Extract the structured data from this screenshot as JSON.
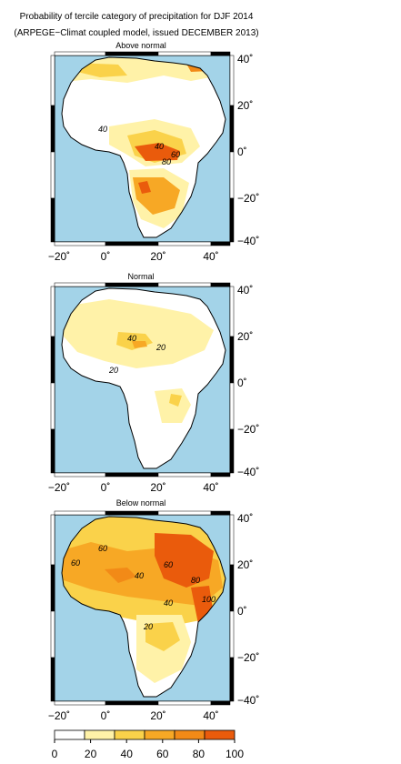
{
  "title_line1": "Probability of tercile category of precipitation for DJF 2014",
  "title_line2": "(ARPEGE−Climat coupled model, issued DECEMBER 2013)",
  "panels": [
    {
      "name": "Above normal",
      "contour_labels": [
        "40",
        "80",
        "40",
        "60"
      ]
    },
    {
      "name": "Normal",
      "contour_labels": [
        "20",
        "40",
        "20"
      ]
    },
    {
      "name": "Below normal",
      "contour_labels": [
        "60",
        "60",
        "40",
        "80",
        "60",
        "100",
        "40",
        "20"
      ]
    }
  ],
  "axes": {
    "x_ticks": [
      "−20˚",
      "0˚",
      "20˚",
      "40˚"
    ],
    "y_ticks": [
      "40˚",
      "20˚",
      "0˚",
      "−20˚",
      "−40˚"
    ]
  },
  "legend": {
    "ticks": [
      "0",
      "20",
      "40",
      "60",
      "80",
      "100"
    ],
    "colors": [
      "#ffffff",
      "#fff2a8",
      "#fad24a",
      "#f7a825",
      "#f28a17",
      "#ea5b0c"
    ]
  },
  "palette": {
    "ocean": "#a3d3e8",
    "land": "#ffffff",
    "border": "#000000"
  }
}
